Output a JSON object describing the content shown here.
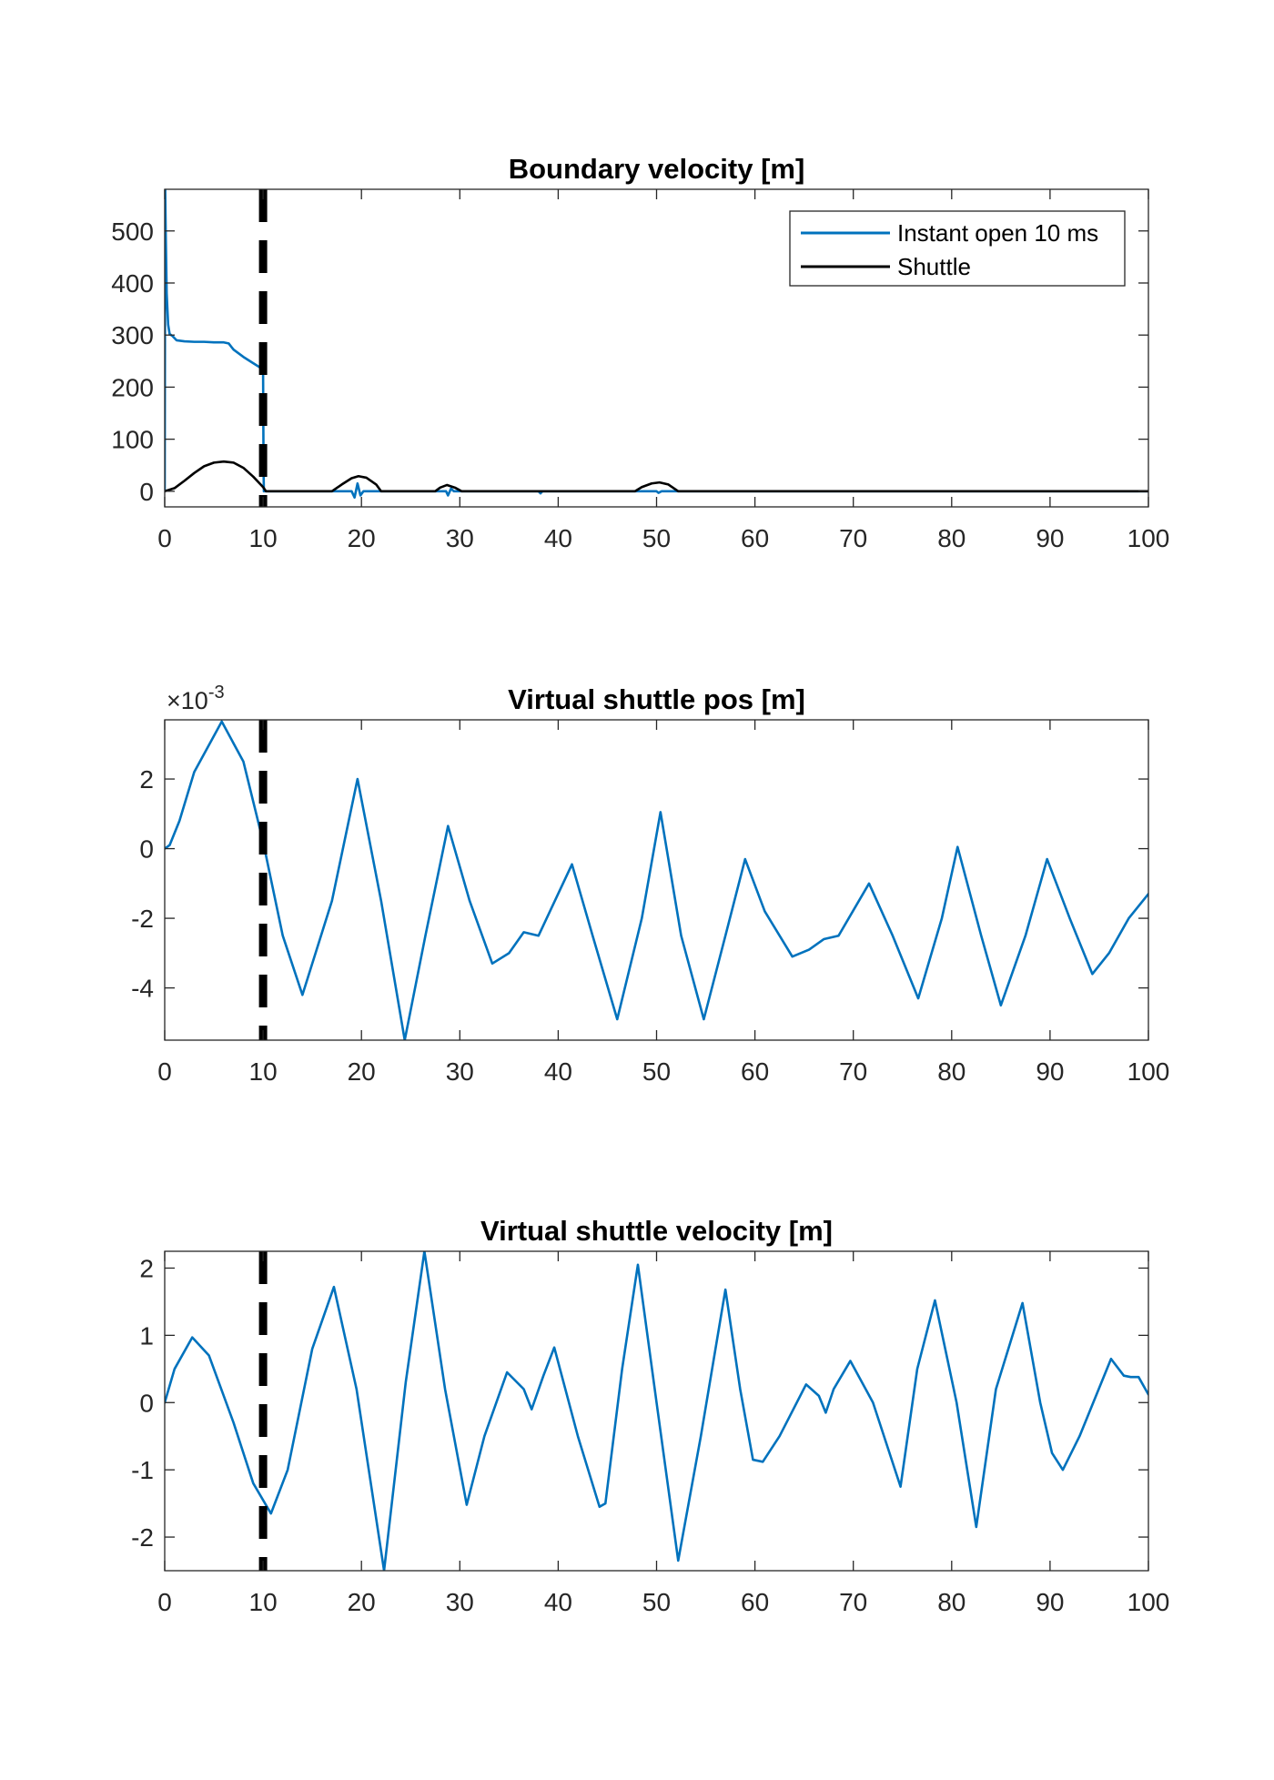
{
  "colors": {
    "series_blue": "#0072BD",
    "series_black": "#000000",
    "axis": "#262626",
    "marker_line": "#000000"
  },
  "chart_data": [
    {
      "type": "line",
      "title": "Boundary velocity [m]",
      "xlabel": "",
      "ylabel": "",
      "xlim": [
        0,
        100
      ],
      "ylim": [
        -30,
        580
      ],
      "xticks": [
        0,
        10,
        20,
        30,
        40,
        50,
        60,
        70,
        80,
        90,
        100
      ],
      "yticks": [
        0,
        100,
        200,
        300,
        400,
        500
      ],
      "exponent_label": "",
      "vertical_marker_x": 10,
      "legend": {
        "position": "top-right",
        "entries": [
          "Instant open 10 ms",
          "Shuttle"
        ]
      },
      "series": [
        {
          "name": "Instant open 10 ms",
          "color": "#0072BD",
          "x": [
            0,
            0.05,
            0.1,
            0.2,
            0.35,
            0.5,
            0.8,
            1.2,
            2,
            3,
            4,
            5,
            6,
            6.5,
            7,
            8,
            9,
            10,
            10.02,
            10.05,
            10.08,
            10.5,
            15,
            19,
            19.3,
            19.6,
            19.9,
            20.2,
            25,
            28.6,
            28.8,
            29.1,
            29.4,
            35,
            38,
            38.2,
            38.4,
            45,
            50,
            50.2,
            50.5,
            55,
            60,
            70,
            75,
            80,
            90,
            100
          ],
          "y": [
            0,
            580,
            500,
            380,
            320,
            302,
            298,
            290,
            288,
            287,
            287,
            286,
            286,
            284,
            272,
            258,
            246,
            234,
            150,
            40,
            0,
            0,
            0,
            0,
            -12,
            15,
            -8,
            0,
            0,
            0,
            -8,
            5,
            0,
            0,
            0,
            -4,
            0,
            0,
            0,
            -3,
            0,
            0,
            0,
            0,
            0,
            0,
            0,
            0
          ]
        },
        {
          "name": "Shuttle",
          "color": "#000000",
          "x": [
            0,
            1,
            2,
            3,
            4,
            5,
            6,
            7,
            8,
            9,
            10,
            10.3,
            17,
            18,
            19,
            19.7,
            20.5,
            21.5,
            22,
            27.5,
            28,
            28.7,
            29.5,
            30.2,
            47.8,
            48.5,
            49.5,
            50.3,
            51.2,
            52.2,
            100
          ],
          "y": [
            0,
            6,
            20,
            35,
            48,
            55,
            57,
            55,
            45,
            28,
            8,
            0,
            0,
            13,
            25,
            29,
            26,
            13,
            0,
            0,
            7,
            12,
            7,
            0,
            0,
            8,
            15,
            17,
            13,
            0,
            0
          ]
        }
      ]
    },
    {
      "type": "line",
      "title": "Virtual shuttle pos [m]",
      "xlabel": "",
      "ylabel": "",
      "xlim": [
        0,
        100
      ],
      "ylim": [
        -5.5,
        3.7
      ],
      "xticks": [
        0,
        10,
        20,
        30,
        40,
        50,
        60,
        70,
        80,
        90,
        100
      ],
      "yticks": [
        -4,
        -2,
        0,
        2
      ],
      "exponent_label": "×10",
      "exponent_power": "-3",
      "vertical_marker_x": 10,
      "series": [
        {
          "color": "#0072BD",
          "x": [
            0,
            0.5,
            1.5,
            3,
            5.8,
            8,
            10,
            12,
            14,
            17,
            19.6,
            22,
            24.4,
            26.5,
            28.8,
            31,
            33.3,
            35,
            36.5,
            38,
            41.4,
            43.5,
            46,
            48.5,
            50.4,
            52.5,
            54.8,
            57,
            59,
            61,
            63.8,
            65.5,
            67,
            68.5,
            71.6,
            74,
            76.6,
            79,
            80.6,
            83,
            85,
            87.5,
            89.7,
            92,
            94.3,
            96,
            98,
            100
          ],
          "y": [
            0,
            0.1,
            0.8,
            2.2,
            3.65,
            2.5,
            0.2,
            -2.5,
            -4.2,
            -1.5,
            2.0,
            -1.5,
            -5.5,
            -2.5,
            0.65,
            -1.5,
            -3.3,
            -3.0,
            -2.4,
            -2.5,
            -0.45,
            -2.5,
            -4.9,
            -2.0,
            1.05,
            -2.5,
            -4.9,
            -2.5,
            -0.3,
            -1.8,
            -3.1,
            -2.9,
            -2.6,
            -2.5,
            -1.0,
            -2.5,
            -4.3,
            -2.0,
            0.05,
            -2.5,
            -4.5,
            -2.5,
            -0.3,
            -2.0,
            -3.6,
            -3.0,
            -2.0,
            -1.3
          ]
        }
      ]
    },
    {
      "type": "line",
      "title": "Virtual shuttle velocity [m]",
      "xlabel": "",
      "ylabel": "",
      "xlim": [
        0,
        100
      ],
      "ylim": [
        -2.5,
        2.25
      ],
      "xticks": [
        0,
        10,
        20,
        30,
        40,
        50,
        60,
        70,
        80,
        90,
        100
      ],
      "yticks": [
        -2,
        -1,
        0,
        1,
        2
      ],
      "exponent_label": "",
      "vertical_marker_x": 10,
      "series": [
        {
          "color": "#0072BD",
          "x": [
            0,
            1,
            2.8,
            4.5,
            7,
            9,
            10.8,
            12.5,
            15,
            17.2,
            19.5,
            22.3,
            24.5,
            26.4,
            28.5,
            30.7,
            32.5,
            34.8,
            36.5,
            37.3,
            38.5,
            39.6,
            42,
            44.2,
            44.8,
            46.5,
            48.1,
            50,
            52.2,
            54.5,
            57,
            58.5,
            59.8,
            60.8,
            62.5,
            65.2,
            66.5,
            67.2,
            68,
            69.7,
            72,
            74.8,
            76.5,
            78.3,
            80.5,
            82.5,
            84.5,
            87.2,
            89,
            90.2,
            91.3,
            93,
            96.2,
            97.5,
            98.2,
            99,
            100
          ],
          "y": [
            0,
            0.5,
            0.97,
            0.7,
            -0.3,
            -1.2,
            -1.65,
            -1.0,
            0.8,
            1.72,
            0.2,
            -2.5,
            0.3,
            2.25,
            0.2,
            -1.52,
            -0.5,
            0.45,
            0.2,
            -0.1,
            0.4,
            0.82,
            -0.5,
            -1.55,
            -1.5,
            0.5,
            2.05,
            0.0,
            -2.35,
            -0.5,
            1.68,
            0.2,
            -0.85,
            -0.88,
            -0.5,
            0.27,
            0.1,
            -0.15,
            0.2,
            0.62,
            0.0,
            -1.25,
            0.5,
            1.52,
            0.0,
            -1.85,
            0.2,
            1.48,
            0.0,
            -0.75,
            -1.0,
            -0.5,
            0.65,
            0.4,
            0.38,
            0.38,
            0.12
          ]
        }
      ]
    }
  ]
}
